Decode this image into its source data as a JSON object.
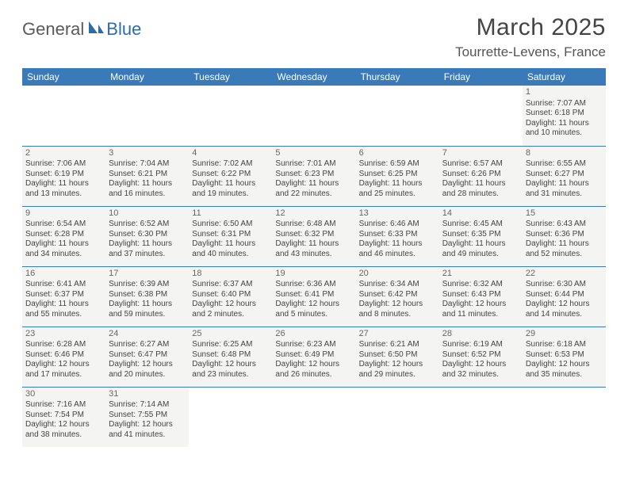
{
  "logo": {
    "part1": "General",
    "part2": "Blue"
  },
  "title": "March 2025",
  "location": "Tourrette-Levens, France",
  "colors": {
    "header_bg": "#3a7ab8",
    "header_fg": "#ffffff",
    "cell_bg": "#f4f4f2",
    "border": "#3a7ab8",
    "logo_gray": "#5a5a5a",
    "logo_blue": "#2e6ca8"
  },
  "dayHeaders": [
    "Sunday",
    "Monday",
    "Tuesday",
    "Wednesday",
    "Thursday",
    "Friday",
    "Saturday"
  ],
  "weeks": [
    [
      null,
      null,
      null,
      null,
      null,
      null,
      {
        "n": "1",
        "sr": "Sunrise: 7:07 AM",
        "ss": "Sunset: 6:18 PM",
        "dl": "Daylight: 11 hours and 10 minutes."
      }
    ],
    [
      {
        "n": "2",
        "sr": "Sunrise: 7:06 AM",
        "ss": "Sunset: 6:19 PM",
        "dl": "Daylight: 11 hours and 13 minutes."
      },
      {
        "n": "3",
        "sr": "Sunrise: 7:04 AM",
        "ss": "Sunset: 6:21 PM",
        "dl": "Daylight: 11 hours and 16 minutes."
      },
      {
        "n": "4",
        "sr": "Sunrise: 7:02 AM",
        "ss": "Sunset: 6:22 PM",
        "dl": "Daylight: 11 hours and 19 minutes."
      },
      {
        "n": "5",
        "sr": "Sunrise: 7:01 AM",
        "ss": "Sunset: 6:23 PM",
        "dl": "Daylight: 11 hours and 22 minutes."
      },
      {
        "n": "6",
        "sr": "Sunrise: 6:59 AM",
        "ss": "Sunset: 6:25 PM",
        "dl": "Daylight: 11 hours and 25 minutes."
      },
      {
        "n": "7",
        "sr": "Sunrise: 6:57 AM",
        "ss": "Sunset: 6:26 PM",
        "dl": "Daylight: 11 hours and 28 minutes."
      },
      {
        "n": "8",
        "sr": "Sunrise: 6:55 AM",
        "ss": "Sunset: 6:27 PM",
        "dl": "Daylight: 11 hours and 31 minutes."
      }
    ],
    [
      {
        "n": "9",
        "sr": "Sunrise: 6:54 AM",
        "ss": "Sunset: 6:28 PM",
        "dl": "Daylight: 11 hours and 34 minutes."
      },
      {
        "n": "10",
        "sr": "Sunrise: 6:52 AM",
        "ss": "Sunset: 6:30 PM",
        "dl": "Daylight: 11 hours and 37 minutes."
      },
      {
        "n": "11",
        "sr": "Sunrise: 6:50 AM",
        "ss": "Sunset: 6:31 PM",
        "dl": "Daylight: 11 hours and 40 minutes."
      },
      {
        "n": "12",
        "sr": "Sunrise: 6:48 AM",
        "ss": "Sunset: 6:32 PM",
        "dl": "Daylight: 11 hours and 43 minutes."
      },
      {
        "n": "13",
        "sr": "Sunrise: 6:46 AM",
        "ss": "Sunset: 6:33 PM",
        "dl": "Daylight: 11 hours and 46 minutes."
      },
      {
        "n": "14",
        "sr": "Sunrise: 6:45 AM",
        "ss": "Sunset: 6:35 PM",
        "dl": "Daylight: 11 hours and 49 minutes."
      },
      {
        "n": "15",
        "sr": "Sunrise: 6:43 AM",
        "ss": "Sunset: 6:36 PM",
        "dl": "Daylight: 11 hours and 52 minutes."
      }
    ],
    [
      {
        "n": "16",
        "sr": "Sunrise: 6:41 AM",
        "ss": "Sunset: 6:37 PM",
        "dl": "Daylight: 11 hours and 55 minutes."
      },
      {
        "n": "17",
        "sr": "Sunrise: 6:39 AM",
        "ss": "Sunset: 6:38 PM",
        "dl": "Daylight: 11 hours and 59 minutes."
      },
      {
        "n": "18",
        "sr": "Sunrise: 6:37 AM",
        "ss": "Sunset: 6:40 PM",
        "dl": "Daylight: 12 hours and 2 minutes."
      },
      {
        "n": "19",
        "sr": "Sunrise: 6:36 AM",
        "ss": "Sunset: 6:41 PM",
        "dl": "Daylight: 12 hours and 5 minutes."
      },
      {
        "n": "20",
        "sr": "Sunrise: 6:34 AM",
        "ss": "Sunset: 6:42 PM",
        "dl": "Daylight: 12 hours and 8 minutes."
      },
      {
        "n": "21",
        "sr": "Sunrise: 6:32 AM",
        "ss": "Sunset: 6:43 PM",
        "dl": "Daylight: 12 hours and 11 minutes."
      },
      {
        "n": "22",
        "sr": "Sunrise: 6:30 AM",
        "ss": "Sunset: 6:44 PM",
        "dl": "Daylight: 12 hours and 14 minutes."
      }
    ],
    [
      {
        "n": "23",
        "sr": "Sunrise: 6:28 AM",
        "ss": "Sunset: 6:46 PM",
        "dl": "Daylight: 12 hours and 17 minutes."
      },
      {
        "n": "24",
        "sr": "Sunrise: 6:27 AM",
        "ss": "Sunset: 6:47 PM",
        "dl": "Daylight: 12 hours and 20 minutes."
      },
      {
        "n": "25",
        "sr": "Sunrise: 6:25 AM",
        "ss": "Sunset: 6:48 PM",
        "dl": "Daylight: 12 hours and 23 minutes."
      },
      {
        "n": "26",
        "sr": "Sunrise: 6:23 AM",
        "ss": "Sunset: 6:49 PM",
        "dl": "Daylight: 12 hours and 26 minutes."
      },
      {
        "n": "27",
        "sr": "Sunrise: 6:21 AM",
        "ss": "Sunset: 6:50 PM",
        "dl": "Daylight: 12 hours and 29 minutes."
      },
      {
        "n": "28",
        "sr": "Sunrise: 6:19 AM",
        "ss": "Sunset: 6:52 PM",
        "dl": "Daylight: 12 hours and 32 minutes."
      },
      {
        "n": "29",
        "sr": "Sunrise: 6:18 AM",
        "ss": "Sunset: 6:53 PM",
        "dl": "Daylight: 12 hours and 35 minutes."
      }
    ],
    [
      {
        "n": "30",
        "sr": "Sunrise: 7:16 AM",
        "ss": "Sunset: 7:54 PM",
        "dl": "Daylight: 12 hours and 38 minutes."
      },
      {
        "n": "31",
        "sr": "Sunrise: 7:14 AM",
        "ss": "Sunset: 7:55 PM",
        "dl": "Daylight: 12 hours and 41 minutes."
      },
      null,
      null,
      null,
      null,
      null
    ]
  ]
}
